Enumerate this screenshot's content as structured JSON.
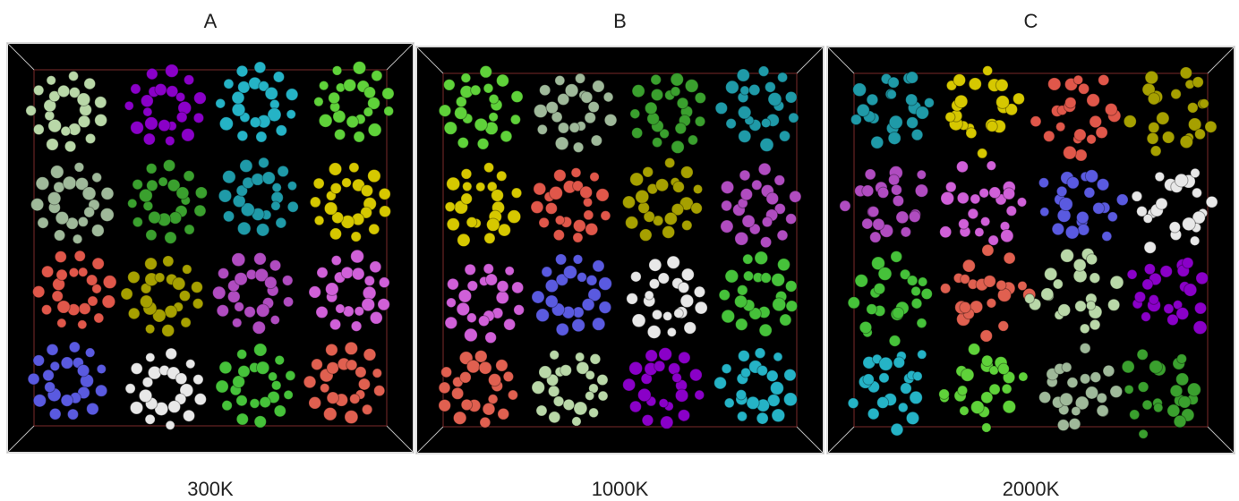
{
  "panels": [
    {
      "label": "A",
      "caption": "300K"
    },
    {
      "label": "B",
      "caption": "1000K"
    },
    {
      "label": "C",
      "caption": "2000K"
    }
  ]
}
